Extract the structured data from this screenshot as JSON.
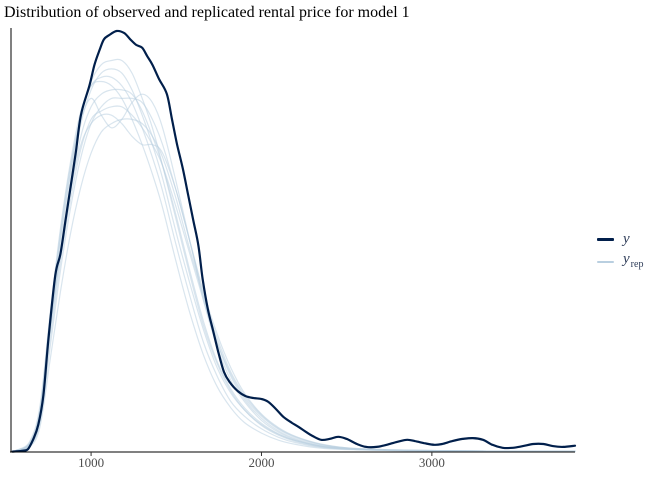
{
  "title": "Distribution of observed and replicated rental price for model 1",
  "colors": {
    "background": "#ffffff",
    "y_line": "#011f4b",
    "yrep_line": "#b9cfe0",
    "yrep_opacity": 0.55,
    "axis": "#000000",
    "tick": "#333333",
    "tick_label": "#4d4d4d",
    "legend_text": "#2e3c58"
  },
  "legend": {
    "position": "right",
    "items": [
      {
        "name": "y",
        "label": "y",
        "sub": ""
      },
      {
        "name": "y_rep",
        "label": "y",
        "sub": "rep"
      }
    ]
  },
  "chart_data": {
    "type": "line",
    "subtype": "density_overlay",
    "title": "Distribution of observed and replicated rental price for model 1",
    "xlabel": "",
    "ylabel": "",
    "grid": false,
    "legend_position": "right",
    "x_range": [
      530,
      3840
    ],
    "y_range": [
      0,
      1.06
    ],
    "x_ticks": [
      1000,
      2000,
      3000
    ],
    "observed": {
      "name": "y",
      "points": [
        [
          540,
          0.001
        ],
        [
          600,
          0.003
        ],
        [
          630,
          0.007
        ],
        [
          660,
          0.03
        ],
        [
          690,
          0.065
        ],
        [
          720,
          0.135
        ],
        [
          750,
          0.27
        ],
        [
          790,
          0.42
        ],
        [
          820,
          0.47
        ],
        [
          850,
          0.55
        ],
        [
          880,
          0.63
        ],
        [
          910,
          0.71
        ],
        [
          940,
          0.8
        ],
        [
          990,
          0.87
        ],
        [
          1020,
          0.92
        ],
        [
          1050,
          0.955
        ],
        [
          1075,
          0.98
        ],
        [
          1105,
          0.99
        ],
        [
          1150,
          1.0
        ],
        [
          1195,
          0.995
        ],
        [
          1230,
          0.98
        ],
        [
          1265,
          0.967
        ],
        [
          1300,
          0.96
        ],
        [
          1330,
          0.94
        ],
        [
          1360,
          0.92
        ],
        [
          1400,
          0.885
        ],
        [
          1445,
          0.85
        ],
        [
          1475,
          0.79
        ],
        [
          1505,
          0.73
        ],
        [
          1540,
          0.67
        ],
        [
          1570,
          0.61
        ],
        [
          1600,
          0.55
        ],
        [
          1630,
          0.49
        ],
        [
          1655,
          0.41
        ],
        [
          1685,
          0.34
        ],
        [
          1715,
          0.29
        ],
        [
          1745,
          0.24
        ],
        [
          1780,
          0.19
        ],
        [
          1815,
          0.165
        ],
        [
          1860,
          0.145
        ],
        [
          1905,
          0.133
        ],
        [
          1955,
          0.128
        ],
        [
          2000,
          0.126
        ],
        [
          2040,
          0.119
        ],
        [
          2085,
          0.102
        ],
        [
          2130,
          0.083
        ],
        [
          2180,
          0.069
        ],
        [
          2220,
          0.059
        ],
        [
          2260,
          0.048
        ],
        [
          2300,
          0.038
        ],
        [
          2350,
          0.029
        ],
        [
          2400,
          0.031
        ],
        [
          2450,
          0.036
        ],
        [
          2500,
          0.031
        ],
        [
          2560,
          0.019
        ],
        [
          2615,
          0.012
        ],
        [
          2675,
          0.012
        ],
        [
          2735,
          0.017
        ],
        [
          2795,
          0.024
        ],
        [
          2855,
          0.029
        ],
        [
          2900,
          0.026
        ],
        [
          2955,
          0.021
        ],
        [
          3015,
          0.017
        ],
        [
          3060,
          0.019
        ],
        [
          3120,
          0.026
        ],
        [
          3180,
          0.031
        ],
        [
          3240,
          0.033
        ],
        [
          3300,
          0.029
        ],
        [
          3355,
          0.017
        ],
        [
          3415,
          0.01
        ],
        [
          3475,
          0.01
        ],
        [
          3535,
          0.014
        ],
        [
          3595,
          0.019
        ],
        [
          3655,
          0.019
        ],
        [
          3710,
          0.014
        ],
        [
          3770,
          0.012
        ],
        [
          3840,
          0.015
        ]
      ]
    },
    "x_rep": [
      560,
      640,
      700,
      760,
      820,
      880,
      940,
      1000,
      1060,
      1120,
      1180,
      1240,
      1300,
      1360,
      1420,
      1500,
      1580,
      1660,
      1740,
      1820,
      1900,
      2000,
      2100,
      2200,
      2350,
      2500,
      2700,
      2900,
      3100,
      3400,
      3840
    ],
    "replicates": [
      {
        "name": "y_rep 1",
        "densities": [
          0.003,
          0.02,
          0.09,
          0.3,
          0.48,
          0.64,
          0.78,
          0.86,
          0.9,
          0.91,
          0.9,
          0.86,
          0.8,
          0.73,
          0.65,
          0.52,
          0.4,
          0.29,
          0.2,
          0.14,
          0.1,
          0.065,
          0.042,
          0.027,
          0.014,
          0.008,
          0.005,
          0.004,
          0.003,
          0.002,
          0.002
        ]
      },
      {
        "name": "y_rep 2",
        "densities": [
          0.002,
          0.015,
          0.07,
          0.25,
          0.43,
          0.58,
          0.7,
          0.78,
          0.82,
          0.84,
          0.84,
          0.84,
          0.83,
          0.79,
          0.73,
          0.62,
          0.5,
          0.38,
          0.28,
          0.2,
          0.14,
          0.09,
          0.058,
          0.037,
          0.019,
          0.01,
          0.006,
          0.004,
          0.003,
          0.002,
          0.002
        ]
      },
      {
        "name": "y_rep 3",
        "densities": [
          0.003,
          0.02,
          0.1,
          0.32,
          0.52,
          0.68,
          0.79,
          0.84,
          0.8,
          0.77,
          0.79,
          0.83,
          0.85,
          0.83,
          0.77,
          0.64,
          0.5,
          0.36,
          0.25,
          0.17,
          0.12,
          0.075,
          0.047,
          0.029,
          0.014,
          0.008,
          0.005,
          0.003,
          0.003,
          0.002,
          0.002
        ]
      },
      {
        "name": "y_rep 4",
        "densities": [
          0.004,
          0.025,
          0.11,
          0.33,
          0.53,
          0.69,
          0.81,
          0.87,
          0.88,
          0.87,
          0.84,
          0.79,
          0.73,
          0.66,
          0.58,
          0.45,
          0.33,
          0.23,
          0.155,
          0.105,
          0.07,
          0.045,
          0.028,
          0.018,
          0.009,
          0.006,
          0.004,
          0.003,
          0.002,
          0.002,
          0.001
        ]
      },
      {
        "name": "y_rep 5",
        "densities": [
          0.002,
          0.012,
          0.06,
          0.22,
          0.38,
          0.52,
          0.63,
          0.71,
          0.76,
          0.78,
          0.79,
          0.79,
          0.78,
          0.75,
          0.7,
          0.6,
          0.48,
          0.37,
          0.27,
          0.19,
          0.135,
          0.088,
          0.056,
          0.036,
          0.018,
          0.01,
          0.006,
          0.004,
          0.003,
          0.002,
          0.002
        ]
      },
      {
        "name": "y_rep 6",
        "densities": [
          0.003,
          0.02,
          0.09,
          0.31,
          0.5,
          0.66,
          0.8,
          0.88,
          0.92,
          0.93,
          0.93,
          0.9,
          0.84,
          0.77,
          0.68,
          0.55,
          0.42,
          0.3,
          0.21,
          0.145,
          0.1,
          0.063,
          0.04,
          0.025,
          0.012,
          0.007,
          0.004,
          0.003,
          0.002,
          0.002,
          0.002
        ]
      },
      {
        "name": "y_rep 7",
        "densities": [
          0.002,
          0.015,
          0.075,
          0.27,
          0.45,
          0.6,
          0.72,
          0.79,
          0.81,
          0.82,
          0.82,
          0.8,
          0.77,
          0.73,
          0.68,
          0.58,
          0.47,
          0.36,
          0.26,
          0.185,
          0.13,
          0.085,
          0.054,
          0.034,
          0.017,
          0.009,
          0.005,
          0.004,
          0.003,
          0.002,
          0.002
        ]
      },
      {
        "name": "y_rep 8",
        "densities": [
          0.003,
          0.018,
          0.085,
          0.29,
          0.47,
          0.62,
          0.75,
          0.82,
          0.85,
          0.86,
          0.86,
          0.85,
          0.81,
          0.75,
          0.68,
          0.56,
          0.43,
          0.31,
          0.215,
          0.15,
          0.105,
          0.068,
          0.043,
          0.027,
          0.013,
          0.008,
          0.005,
          0.003,
          0.003,
          0.002,
          0.002
        ]
      },
      {
        "name": "y_rep 9",
        "densities": [
          0.003,
          0.02,
          0.09,
          0.29,
          0.47,
          0.62,
          0.73,
          0.78,
          0.8,
          0.8,
          0.78,
          0.75,
          0.73,
          0.73,
          0.71,
          0.62,
          0.5,
          0.37,
          0.26,
          0.18,
          0.125,
          0.08,
          0.05,
          0.031,
          0.015,
          0.009,
          0.005,
          0.004,
          0.003,
          0.002,
          0.002
        ]
      },
      {
        "name": "y_rep 10",
        "densities": [
          0.004,
          0.022,
          0.1,
          0.32,
          0.51,
          0.67,
          0.8,
          0.87,
          0.89,
          0.89,
          0.87,
          0.83,
          0.77,
          0.7,
          0.62,
          0.49,
          0.37,
          0.26,
          0.18,
          0.12,
          0.085,
          0.055,
          0.035,
          0.022,
          0.011,
          0.007,
          0.004,
          0.003,
          0.002,
          0.002,
          0.001
        ]
      }
    ]
  }
}
